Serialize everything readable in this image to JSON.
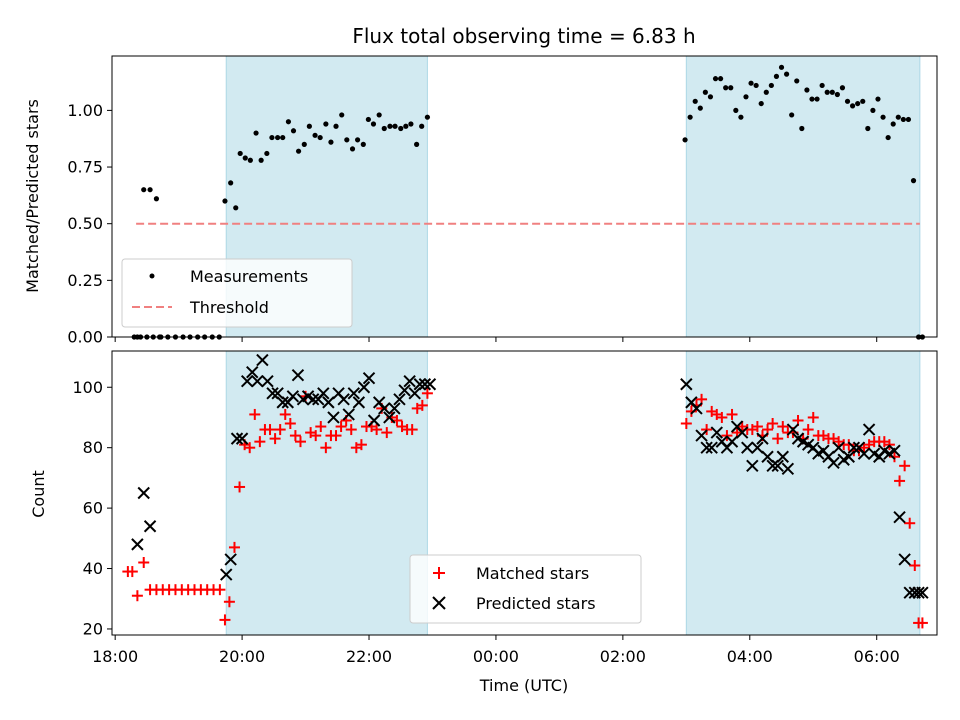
{
  "chart_data": {
    "title": "Flux total observing time = 6.83 h",
    "xlabel": "Time (UTC)",
    "x_unit": "hours",
    "xlim": [
      17.95,
      30.95
    ],
    "x_ticks": [
      {
        "value": 18,
        "label": "18:00"
      },
      {
        "value": 20,
        "label": "20:00"
      },
      {
        "value": 22,
        "label": "22:00"
      },
      {
        "value": 24,
        "label": "00:00"
      },
      {
        "value": 26,
        "label": "02:00"
      },
      {
        "value": 28,
        "label": "04:00"
      },
      {
        "value": 30,
        "label": "06:00"
      }
    ],
    "shaded_intervals": [
      [
        19.75,
        22.92
      ],
      [
        27.0,
        30.68
      ]
    ],
    "shade_color": "#add8e6",
    "panels": [
      {
        "type": "scatter",
        "ylabel": "Matched/Predicted stars",
        "ylim": [
          0,
          1.24
        ],
        "y_ticks": [
          0,
          0.25,
          0.5,
          0.75,
          1.0
        ],
        "y_tick_labels": [
          "0.00",
          "0.25",
          "0.50",
          "0.75",
          "1.00"
        ],
        "legend_position": "lower-left",
        "series": [
          {
            "name": "Measurements",
            "marker": "dot",
            "color": "#000000",
            "x": [
              18.3,
              18.35,
              18.4,
              18.5,
              18.6,
              18.7,
              18.72,
              18.83,
              18.95,
              19.07,
              19.18,
              19.3,
              19.41,
              19.53,
              19.64,
              18.45,
              18.55,
              18.65,
              19.73,
              19.82,
              19.9,
              19.97,
              20.05,
              20.13,
              20.22,
              20.3,
              20.39,
              20.47,
              20.56,
              20.64,
              20.73,
              20.81,
              20.89,
              20.98,
              21.06,
              21.15,
              21.23,
              21.32,
              21.4,
              21.48,
              21.57,
              21.65,
              21.74,
              21.82,
              21.91,
              21.99,
              22.07,
              22.16,
              22.24,
              22.33,
              22.41,
              22.5,
              22.58,
              22.66,
              22.75,
              22.83,
              22.92,
              26.98,
              27.06,
              27.14,
              27.22,
              27.3,
              27.38,
              27.46,
              27.54,
              27.62,
              27.7,
              27.78,
              27.86,
              27.94,
              28.02,
              28.1,
              28.18,
              28.26,
              28.34,
              28.42,
              28.5,
              28.58,
              28.66,
              28.74,
              28.82,
              28.9,
              28.98,
              29.06,
              29.14,
              29.22,
              29.3,
              29.38,
              29.46,
              29.54,
              29.62,
              29.7,
              29.78,
              29.86,
              29.94,
              30.02,
              30.1,
              30.18,
              30.26,
              30.34,
              30.42,
              30.5,
              30.58,
              30.66,
              30.72
            ],
            "y": [
              0.0,
              0.0,
              0.0,
              0.0,
              0.0,
              0.0,
              0.0,
              0.0,
              0.0,
              0.0,
              0.0,
              0.0,
              0.0,
              0.0,
              0.0,
              0.65,
              0.65,
              0.61,
              0.6,
              0.68,
              0.57,
              0.81,
              0.79,
              0.78,
              0.9,
              0.78,
              0.81,
              0.88,
              0.88,
              0.88,
              0.95,
              0.91,
              0.82,
              0.85,
              0.93,
              0.89,
              0.88,
              0.94,
              0.86,
              0.93,
              0.98,
              0.87,
              0.83,
              0.87,
              0.85,
              0.96,
              0.94,
              0.98,
              0.92,
              0.93,
              0.93,
              0.92,
              0.93,
              0.94,
              0.85,
              0.93,
              0.97,
              0.87,
              0.97,
              1.04,
              1.01,
              1.08,
              1.06,
              1.14,
              1.14,
              1.1,
              1.1,
              1.0,
              0.97,
              1.06,
              1.12,
              1.11,
              1.03,
              1.08,
              1.11,
              1.15,
              1.19,
              1.16,
              0.98,
              1.13,
              0.92,
              1.09,
              1.05,
              1.05,
              1.11,
              1.08,
              1.08,
              1.07,
              1.1,
              1.04,
              1.02,
              1.03,
              1.04,
              0.92,
              1.0,
              1.05,
              0.97,
              0.88,
              0.94,
              0.97,
              0.96,
              0.96,
              0.69,
              0.0,
              0.0
            ],
            "drawn_count": 103
          },
          {
            "name": "Threshold",
            "marker": "dashed-line",
            "color": "#f08080",
            "x": [
              18.33,
              30.68
            ],
            "y": [
              0.5,
              0.5
            ]
          }
        ]
      },
      {
        "type": "scatter",
        "ylabel": "Count",
        "ylim": [
          18,
          112
        ],
        "y_ticks": [
          20,
          40,
          60,
          80,
          100
        ],
        "y_tick_labels": [
          "20",
          "40",
          "60",
          "80",
          "100"
        ],
        "legend_position": "lower-center",
        "series": [
          {
            "name": "Matched stars",
            "marker": "plus",
            "color": "#ff0000",
            "x": [
              18.2,
              18.27,
              18.35,
              18.45,
              18.55,
              18.65,
              18.75,
              18.85,
              18.95,
              19.05,
              19.15,
              19.25,
              19.35,
              19.45,
              19.55,
              19.65,
              19.73,
              19.8,
              19.88,
              19.96,
              20.04,
              20.12,
              20.2,
              20.28,
              20.36,
              20.44,
              20.52,
              20.6,
              20.68,
              20.76,
              20.84,
              20.92,
              21.0,
              21.08,
              21.16,
              21.24,
              21.32,
              21.4,
              21.48,
              21.56,
              21.64,
              21.72,
              21.8,
              21.88,
              21.96,
              22.04,
              22.12,
              22.2,
              22.28,
              22.36,
              22.44,
              22.52,
              22.6,
              22.68,
              22.76,
              22.84,
              22.92,
              27.0,
              27.08,
              27.16,
              27.24,
              27.32,
              27.4,
              27.48,
              27.56,
              27.64,
              27.72,
              27.8,
              27.88,
              27.96,
              28.04,
              28.12,
              28.2,
              28.28,
              28.36,
              28.44,
              28.52,
              28.6,
              28.68,
              28.76,
              28.84,
              28.92,
              29.0,
              29.08,
              29.16,
              29.24,
              29.32,
              29.4,
              29.48,
              29.56,
              29.64,
              29.72,
              29.8,
              29.88,
              29.96,
              30.04,
              30.12,
              30.2,
              30.28,
              30.36,
              30.44,
              30.52,
              30.6,
              30.66,
              30.72
            ],
            "y": [
              39,
              39,
              31,
              42,
              33,
              33,
              33,
              33,
              33,
              33,
              33,
              33,
              33,
              33,
              33,
              33,
              23,
              29,
              47,
              67,
              81,
              80,
              91,
              82,
              86,
              86,
              83,
              86,
              91,
              88,
              84,
              82,
              97,
              85,
              84,
              87,
              80,
              84,
              84,
              87,
              89,
              86,
              80,
              81,
              87,
              87,
              86,
              93,
              85,
              90,
              89,
              87,
              86,
              86,
              93,
              94,
              98,
              88,
              92,
              94,
              96,
              86,
              92,
              91,
              90,
              84,
              91,
              85,
              87,
              86,
              86,
              87,
              84,
              86,
              88,
              83,
              87,
              85,
              85,
              89,
              83,
              86,
              90,
              84,
              84,
              83,
              83,
              82,
              81,
              81,
              79,
              79,
              80,
              81,
              82,
              82,
              82,
              81,
              77,
              69,
              74,
              55,
              41,
              22,
              22
            ],
            "drawn_count": 103
          },
          {
            "name": "Predicted stars",
            "marker": "x",
            "color": "#000000",
            "x": [
              18.35,
              18.45,
              18.55,
              19.75,
              19.82,
              19.92,
              20.0,
              20.08,
              20.16,
              20.24,
              20.32,
              20.4,
              20.48,
              20.56,
              20.64,
              20.72,
              20.8,
              20.88,
              20.96,
              21.04,
              21.12,
              21.2,
              21.28,
              21.36,
              21.44,
              21.52,
              21.6,
              21.68,
              21.76,
              21.84,
              21.92,
              22.0,
              22.08,
              22.16,
              22.24,
              22.32,
              22.4,
              22.48,
              22.56,
              22.64,
              22.72,
              22.8,
              22.88,
              22.96,
              27.0,
              27.08,
              27.16,
              27.24,
              27.32,
              27.4,
              27.48,
              27.56,
              27.64,
              27.72,
              27.8,
              27.88,
              27.96,
              28.04,
              28.12,
              28.2,
              28.28,
              28.36,
              28.44,
              28.52,
              28.6,
              28.68,
              28.76,
              28.84,
              28.92,
              29.0,
              29.08,
              29.16,
              29.24,
              29.32,
              29.4,
              29.48,
              29.56,
              29.64,
              29.72,
              29.8,
              29.88,
              29.96,
              30.04,
              30.12,
              30.2,
              30.28,
              30.36,
              30.44,
              30.52,
              30.6,
              30.66,
              30.72
            ],
            "y": [
              48,
              65,
              54,
              38,
              43,
              83,
              83,
              102,
              105,
              102,
              109,
              102,
              98,
              98,
              95,
              95,
              97,
              104,
              96,
              97,
              96,
              96,
              98,
              95,
              90,
              98,
              96,
              91,
              98,
              95,
              100,
              103,
              89,
              95,
              93,
              90,
              93,
              96,
              99,
              102,
              98,
              101,
              101,
              101,
              101,
              95,
              93,
              84,
              80,
              80,
              85,
              82,
              80,
              82,
              87,
              85,
              80,
              74,
              80,
              83,
              77,
              74,
              74,
              77,
              73,
              86,
              83,
              82,
              81,
              80,
              78,
              79,
              77,
              75,
              80,
              76,
              77,
              80,
              80,
              78,
              86,
              78,
              77,
              79,
              78,
              79,
              57,
              43,
              32,
              32,
              32,
              32
            ],
            "drawn_count": 89
          }
        ]
      }
    ]
  }
}
